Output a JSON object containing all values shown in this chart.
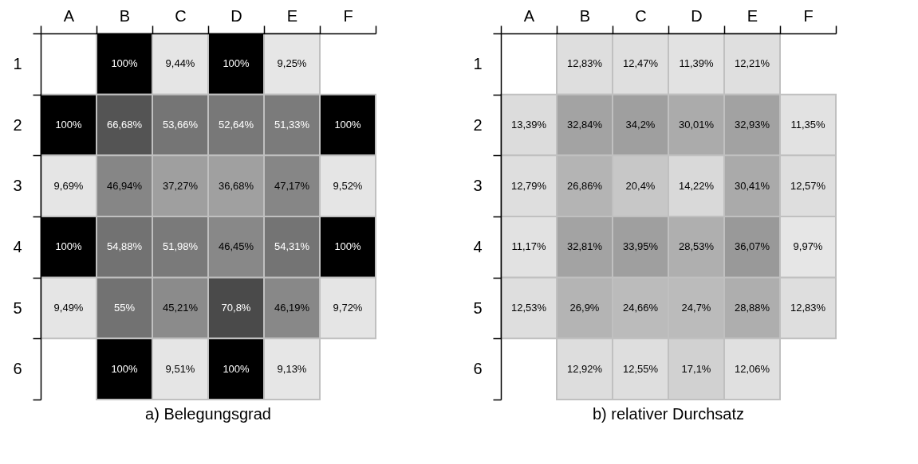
{
  "chart_data": [
    {
      "type": "heatmap",
      "title": "a) Belegungsgrad",
      "categories": [
        "A",
        "B",
        "C",
        "D",
        "E",
        "F"
      ],
      "y_categories": [
        "1",
        "2",
        "3",
        "4",
        "5",
        "6"
      ],
      "colors": [
        "#e6e6e6",
        "#000000"
      ],
      "cells": [
        [
          null,
          100,
          9.44,
          100,
          9.25,
          null
        ],
        [
          100,
          66.68,
          53.66,
          52.64,
          51.33,
          100
        ],
        [
          9.69,
          46.94,
          37.27,
          36.68,
          47.17,
          9.52
        ],
        [
          100,
          54.88,
          51.98,
          46.45,
          54.31,
          100
        ],
        [
          9.49,
          55,
          45.21,
          70.8,
          46.19,
          9.72
        ],
        [
          null,
          100,
          9.51,
          100,
          9.13,
          null
        ]
      ],
      "cell_labels": [
        [
          null,
          "100%",
          "9,44%",
          "100%",
          "9,25%",
          null
        ],
        [
          "100%",
          "66,68%",
          "53,66%",
          "52,64%",
          "51,33%",
          "100%"
        ],
        [
          "9,69%",
          "46,94%",
          "37,27%",
          "36,68%",
          "47,17%",
          "9,52%"
        ],
        [
          "100%",
          "54,88%",
          "51,98%",
          "46,45%",
          "54,31%",
          "100%"
        ],
        [
          "9,49%",
          "55%",
          "45,21%",
          "70,8%",
          "46,19%",
          "9,72%"
        ],
        [
          null,
          "100%",
          "9,51%",
          "100%",
          "9,13%",
          null
        ]
      ]
    },
    {
      "type": "heatmap",
      "title": "b) relativer Durchsatz",
      "categories": [
        "A",
        "B",
        "C",
        "D",
        "E",
        "F"
      ],
      "y_categories": [
        "1",
        "2",
        "3",
        "4",
        "5",
        "6"
      ],
      "colors": [
        "#e6e6e6",
        "#999999"
      ],
      "cells": [
        [
          null,
          12.83,
          12.47,
          11.39,
          12.21,
          null
        ],
        [
          13.39,
          32.84,
          34.2,
          30.01,
          32.93,
          11.35
        ],
        [
          12.79,
          26.86,
          20.4,
          14.22,
          30.41,
          12.57
        ],
        [
          11.17,
          32.81,
          33.95,
          28.53,
          36.07,
          9.97
        ],
        [
          12.53,
          26.9,
          24.66,
          24.7,
          28.88,
          12.83
        ],
        [
          null,
          12.92,
          12.55,
          17.1,
          12.06,
          null
        ]
      ],
      "cell_labels": [
        [
          null,
          "12,83%",
          "12,47%",
          "11,39%",
          "12,21%",
          null
        ],
        [
          "13,39%",
          "32,84%",
          "34,2%",
          "30,01%",
          "32,93%",
          "11,35%"
        ],
        [
          "12,79%",
          "26,86%",
          "20,4%",
          "14,22%",
          "30,41%",
          "12,57%"
        ],
        [
          "11,17%",
          "32,81%",
          "33,95%",
          "28,53%",
          "36,07%",
          "9,97%"
        ],
        [
          "12,53%",
          "26,9%",
          "24,66%",
          "24,7%",
          "28,88%",
          "12,83%"
        ],
        [
          null,
          "12,92%",
          "12,55%",
          "17,1%",
          "12,06%",
          null
        ]
      ]
    }
  ]
}
